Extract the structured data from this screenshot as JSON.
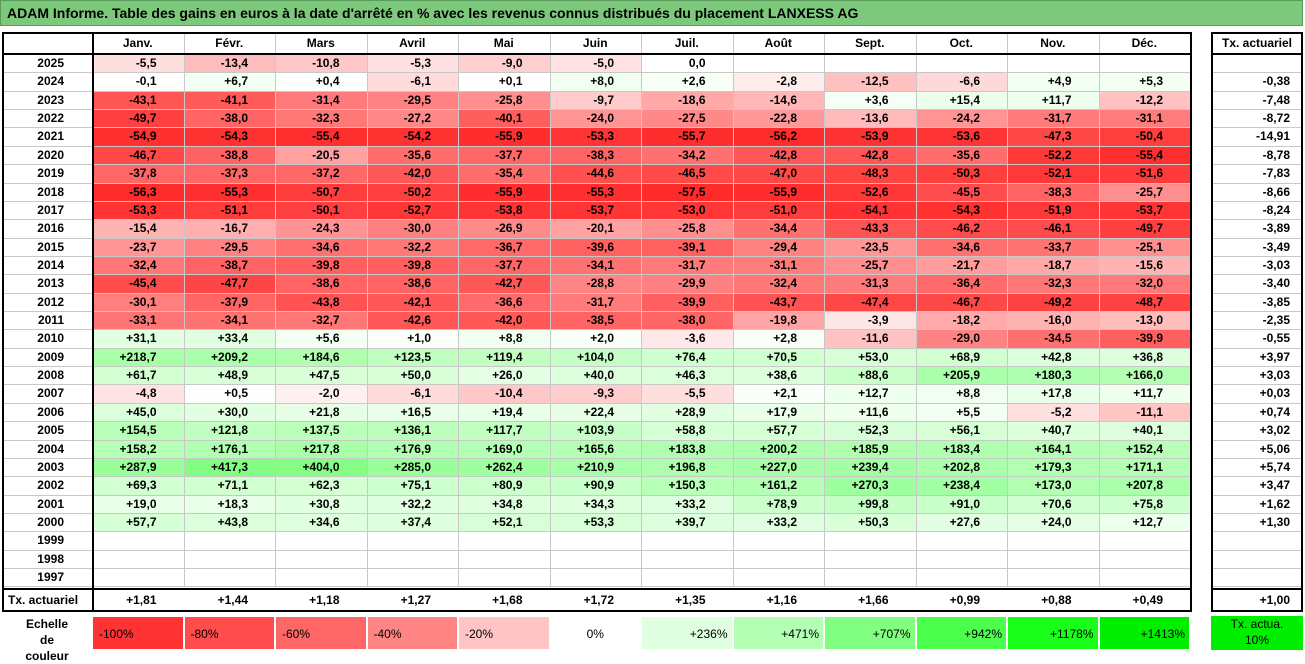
{
  "title": "ADAM Informe. Table des gains en euros à la date d'arrêté en % avec les revenus connus distribués du placement LANXESS AG",
  "chart_data": {
    "type": "heatmap",
    "title": "ADAM Informe. Table des gains en euros à la date d'arrêté en % avec les revenus connus distribués du placement LANXESS AG",
    "months": [
      "Janv.",
      "Févr.",
      "Mars",
      "Avril",
      "Mai",
      "Juin",
      "Juil.",
      "Août",
      "Sept.",
      "Oct.",
      "Nov.",
      "Déc."
    ],
    "rate_header": "Tx. actuariel",
    "rows": [
      {
        "year": "2025",
        "values": [
          "-5,5",
          "-13,4",
          "-10,8",
          "-5,3",
          "-9,0",
          "-5,0",
          "0,0",
          "",
          "",
          "",
          "",
          ""
        ],
        "rate": ""
      },
      {
        "year": "2024",
        "values": [
          "-0,1",
          "+6,7",
          "+0,4",
          "-6,1",
          "+0,1",
          "+8,0",
          "+2,6",
          "-2,8",
          "-12,5",
          "-6,6",
          "+4,9",
          "+5,3"
        ],
        "rate": "-0,38"
      },
      {
        "year": "2023",
        "values": [
          "-43,1",
          "-41,1",
          "-31,4",
          "-29,5",
          "-25,8",
          "-9,7",
          "-18,6",
          "-14,6",
          "+3,6",
          "+15,4",
          "+11,7",
          "-12,2"
        ],
        "rate": "-7,48"
      },
      {
        "year": "2022",
        "values": [
          "-49,7",
          "-38,0",
          "-32,3",
          "-27,2",
          "-40,1",
          "-24,0",
          "-27,5",
          "-22,8",
          "-13,6",
          "-24,2",
          "-31,7",
          "-31,1"
        ],
        "rate": "-8,72"
      },
      {
        "year": "2021",
        "values": [
          "-54,9",
          "-54,3",
          "-55,4",
          "-54,2",
          "-55,9",
          "-53,3",
          "-55,7",
          "-56,2",
          "-53,9",
          "-53,6",
          "-47,3",
          "-50,4"
        ],
        "rate": "-14,91"
      },
      {
        "year": "2020",
        "values": [
          "-46,7",
          "-38,8",
          "-20,5",
          "-35,6",
          "-37,7",
          "-38,3",
          "-34,2",
          "-42,8",
          "-42,8",
          "-35,6",
          "-52,2",
          "-55,4"
        ],
        "rate": "-8,78"
      },
      {
        "year": "2019",
        "values": [
          "-37,8",
          "-37,3",
          "-37,2",
          "-42,0",
          "-35,4",
          "-44,6",
          "-46,5",
          "-47,0",
          "-48,3",
          "-50,3",
          "-52,1",
          "-51,6"
        ],
        "rate": "-7,83"
      },
      {
        "year": "2018",
        "values": [
          "-56,3",
          "-55,3",
          "-50,7",
          "-50,2",
          "-55,9",
          "-55,3",
          "-57,5",
          "-55,9",
          "-52,6",
          "-45,5",
          "-38,3",
          "-25,7"
        ],
        "rate": "-8,66"
      },
      {
        "year": "2017",
        "values": [
          "-53,3",
          "-51,1",
          "-50,1",
          "-52,7",
          "-53,8",
          "-53,7",
          "-53,0",
          "-51,0",
          "-54,1",
          "-54,3",
          "-51,9",
          "-53,7"
        ],
        "rate": "-8,24"
      },
      {
        "year": "2016",
        "values": [
          "-15,4",
          "-16,7",
          "-24,3",
          "-30,0",
          "-26,9",
          "-20,1",
          "-25,8",
          "-34,4",
          "-43,3",
          "-46,2",
          "-46,1",
          "-49,7"
        ],
        "rate": "-3,89"
      },
      {
        "year": "2015",
        "values": [
          "-23,7",
          "-29,5",
          "-34,6",
          "-32,2",
          "-36,7",
          "-39,6",
          "-39,1",
          "-29,4",
          "-23,5",
          "-34,6",
          "-33,7",
          "-25,1"
        ],
        "rate": "-3,49"
      },
      {
        "year": "2014",
        "values": [
          "-32,4",
          "-38,7",
          "-39,8",
          "-39,8",
          "-37,7",
          "-34,1",
          "-31,7",
          "-31,1",
          "-25,7",
          "-21,7",
          "-18,7",
          "-15,6"
        ],
        "rate": "-3,03"
      },
      {
        "year": "2013",
        "values": [
          "-45,4",
          "-47,7",
          "-38,6",
          "-38,6",
          "-42,7",
          "-28,8",
          "-29,9",
          "-32,4",
          "-31,3",
          "-36,4",
          "-32,3",
          "-32,0"
        ],
        "rate": "-3,40"
      },
      {
        "year": "2012",
        "values": [
          "-30,1",
          "-37,9",
          "-43,8",
          "-42,1",
          "-36,6",
          "-31,7",
          "-39,9",
          "-43,7",
          "-47,4",
          "-46,7",
          "-49,2",
          "-48,7"
        ],
        "rate": "-3,85"
      },
      {
        "year": "2011",
        "values": [
          "-33,1",
          "-34,1",
          "-32,7",
          "-42,6",
          "-42,0",
          "-38,5",
          "-38,0",
          "-19,8",
          "-3,9",
          "-18,2",
          "-16,0",
          "-13,0"
        ],
        "rate": "-2,35"
      },
      {
        "year": "2010",
        "values": [
          "+31,1",
          "+33,4",
          "+5,6",
          "+1,0",
          "+8,8",
          "+2,0",
          "-3,6",
          "+2,8",
          "-11,6",
          "-29,0",
          "-34,5",
          "-39,9"
        ],
        "rate": "-0,55"
      },
      {
        "year": "2009",
        "values": [
          "+218,7",
          "+209,2",
          "+184,6",
          "+123,5",
          "+119,4",
          "+104,0",
          "+76,4",
          "+70,5",
          "+53,0",
          "+68,9",
          "+42,8",
          "+36,8"
        ],
        "rate": "+3,97"
      },
      {
        "year": "2008",
        "values": [
          "+61,7",
          "+48,9",
          "+47,5",
          "+50,0",
          "+26,0",
          "+40,0",
          "+46,3",
          "+38,6",
          "+88,6",
          "+205,9",
          "+180,3",
          "+166,0"
        ],
        "rate": "+3,03"
      },
      {
        "year": "2007",
        "values": [
          "-4,8",
          "+0,5",
          "-2,0",
          "-6,1",
          "-10,4",
          "-9,3",
          "-5,5",
          "+2,1",
          "+12,7",
          "+8,8",
          "+17,8",
          "+11,7"
        ],
        "rate": "+0,03"
      },
      {
        "year": "2006",
        "values": [
          "+45,0",
          "+30,0",
          "+21,8",
          "+16,5",
          "+19,4",
          "+22,4",
          "+28,9",
          "+17,9",
          "+11,6",
          "+5,5",
          "-5,2",
          "-11,1"
        ],
        "rate": "+0,74"
      },
      {
        "year": "2005",
        "values": [
          "+154,5",
          "+121,8",
          "+137,5",
          "+136,1",
          "+117,7",
          "+103,9",
          "+58,8",
          "+57,7",
          "+52,3",
          "+56,1",
          "+40,7",
          "+40,1"
        ],
        "rate": "+3,02"
      },
      {
        "year": "2004",
        "values": [
          "+158,2",
          "+176,1",
          "+217,8",
          "+176,9",
          "+169,0",
          "+165,6",
          "+183,8",
          "+200,2",
          "+185,9",
          "+183,4",
          "+164,1",
          "+152,4"
        ],
        "rate": "+5,06"
      },
      {
        "year": "2003",
        "values": [
          "+287,9",
          "+417,3",
          "+404,0",
          "+285,0",
          "+262,4",
          "+210,9",
          "+196,8",
          "+227,0",
          "+239,4",
          "+202,8",
          "+179,3",
          "+171,1"
        ],
        "rate": "+5,74"
      },
      {
        "year": "2002",
        "values": [
          "+69,3",
          "+71,1",
          "+62,3",
          "+75,1",
          "+80,9",
          "+90,9",
          "+150,3",
          "+161,2",
          "+270,3",
          "+238,4",
          "+173,0",
          "+207,8"
        ],
        "rate": "+3,47"
      },
      {
        "year": "2001",
        "values": [
          "+19,0",
          "+18,3",
          "+30,8",
          "+32,2",
          "+34,8",
          "+34,3",
          "+33,2",
          "+78,9",
          "+99,8",
          "+91,0",
          "+70,6",
          "+75,8"
        ],
        "rate": "+1,62"
      },
      {
        "year": "2000",
        "values": [
          "+57,7",
          "+43,8",
          "+34,6",
          "+37,4",
          "+52,1",
          "+53,3",
          "+39,7",
          "+33,2",
          "+50,3",
          "+27,6",
          "+24,0",
          "+12,7"
        ],
        "rate": "+1,30"
      },
      {
        "year": "1999",
        "values": [
          "",
          "",
          "",
          "",
          "",
          "",
          "",
          "",
          "",
          "",
          "",
          ""
        ],
        "rate": ""
      },
      {
        "year": "1998",
        "values": [
          "",
          "",
          "",
          "",
          "",
          "",
          "",
          "",
          "",
          "",
          "",
          ""
        ],
        "rate": ""
      },
      {
        "year": "1997",
        "values": [
          "",
          "",
          "",
          "",
          "",
          "",
          "",
          "",
          "",
          "",
          "",
          ""
        ],
        "rate": ""
      }
    ],
    "summary_row": {
      "label": "Tx. actuariel",
      "values": [
        "+1,81",
        "+1,44",
        "+1,18",
        "+1,27",
        "+1,68",
        "+1,72",
        "+1,35",
        "+1,16",
        "+1,66",
        "+0,99",
        "+0,88",
        "+0,49"
      ],
      "total": "+1,00"
    },
    "legend": {
      "label": "Echelle de couleur",
      "steps": [
        {
          "text": "-100%",
          "color": "#ff3333"
        },
        {
          "text": "-80%",
          "color": "#ff4c4c"
        },
        {
          "text": "-60%",
          "color": "#ff6666"
        },
        {
          "text": "-40%",
          "color": "#ff8585"
        },
        {
          "text": "-20%",
          "color": "#ffc4c4"
        },
        {
          "text": "0%",
          "color": "#ffffff"
        },
        {
          "text": "+236%",
          "color": "#e0ffe0"
        },
        {
          "text": "+471%",
          "color": "#b3ffb3"
        },
        {
          "text": "+707%",
          "color": "#80ff80"
        },
        {
          "text": "+942%",
          "color": "#4cff4c"
        },
        {
          "text": "+1178%",
          "color": "#1aff1a"
        },
        {
          "text": "+1413%",
          "color": "#00ee00"
        }
      ],
      "rate_text": "Tx. actua. 10%",
      "rate_color": "#00ee00"
    }
  }
}
